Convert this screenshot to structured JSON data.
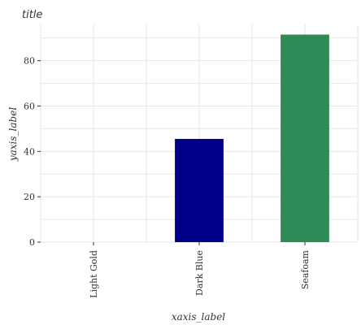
{
  "chart_data": {
    "type": "bar",
    "title": "title",
    "xlabel": "xaxis_label",
    "ylabel": "yaxis_label",
    "categories": [
      "Light Gold",
      "Dark Blue",
      "Seafoam"
    ],
    "values": [
      0,
      45.5,
      91.5
    ],
    "colors": [
      "#eedd82",
      "#00008b",
      "#2e8b57"
    ],
    "ylim": [
      0,
      96
    ],
    "yticks": [
      0,
      20,
      40,
      60,
      80
    ],
    "grid": true
  }
}
